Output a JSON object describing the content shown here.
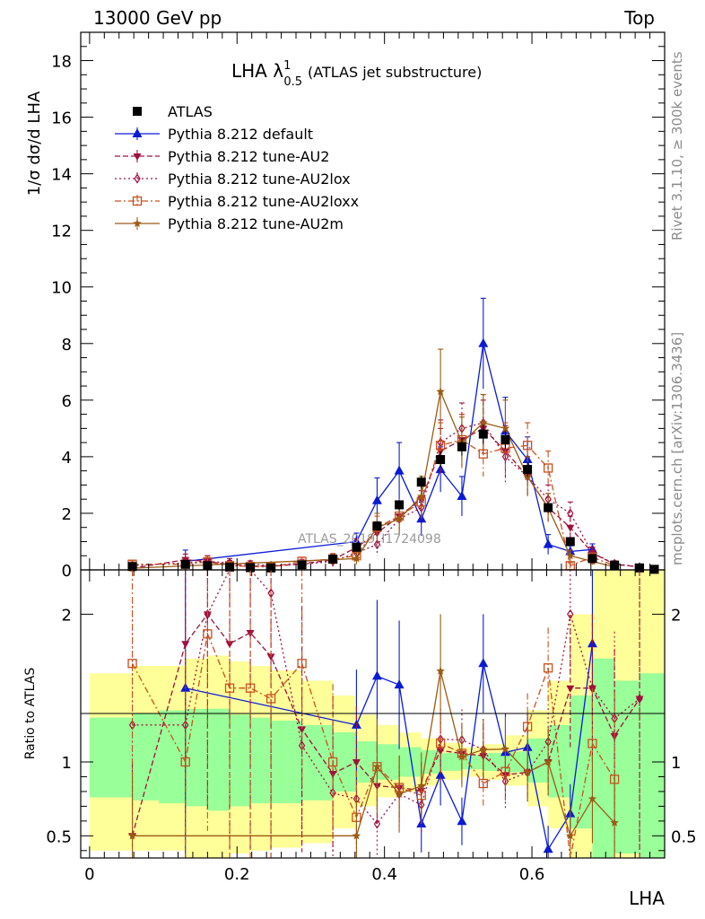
{
  "header": {
    "left": "13000 GeV pp",
    "right": "Top"
  },
  "side_labels": {
    "rivet": "Rivet 3.1.10, ≥ 300k events",
    "mcplots": "mcplots.cern.ch [arXiv:1306.3436]"
  },
  "chart_data": {
    "type": "line",
    "title": "LHA λ₀.₅¹ (ATLAS jet substructure)",
    "title_main": "LHA λ",
    "title_sup": "1",
    "title_sub": "0.5",
    "title_rest": "(ATLAS jet substructure)",
    "watermark": "ATLAS_2019_I1724098",
    "ylabel_main": "1/σ dσ/d LHA",
    "ylabel_ratio": "Ratio to ATLAS",
    "xlabel": "LHA",
    "xlim": [
      -0.012,
      0.78
    ],
    "ylim_main": [
      0,
      19
    ],
    "ylim_ratio": [
      0.35,
      2.3
    ],
    "x_ticks": [
      0,
      0.2,
      0.4,
      0.6
    ],
    "x_tick_labels": [
      "0",
      "0.2",
      "0.4",
      "0.6"
    ],
    "y_ticks_main": [
      0,
      2,
      4,
      6,
      8,
      10,
      12,
      14,
      16,
      18
    ],
    "y_tick_labels_main": [
      "0",
      "2",
      "4",
      "6",
      "8",
      "10",
      "12",
      "14",
      "16",
      "18"
    ],
    "y_ticks_ratio": [
      0.5,
      1,
      2
    ],
    "y_tick_labels_ratio": [
      "0.5",
      "1",
      "2"
    ],
    "legend_position": "top-left",
    "data": {
      "name": "ATLAS",
      "color": "#000000",
      "x": [
        0.058,
        0.13,
        0.16,
        0.19,
        0.218,
        0.246,
        0.288,
        0.33,
        0.362,
        0.39,
        0.42,
        0.45,
        0.476,
        0.505,
        0.534,
        0.564,
        0.594,
        0.622,
        0.652,
        0.682,
        0.712,
        0.746,
        0.766
      ],
      "y": [
        0.12,
        0.2,
        0.15,
        0.1,
        0.08,
        0.07,
        0.18,
        0.38,
        0.8,
        1.55,
        2.3,
        3.1,
        3.9,
        4.35,
        4.8,
        4.6,
        3.55,
        2.2,
        1.0,
        0.4,
        0.17,
        0.07,
        0.02
      ]
    },
    "series": [
      {
        "name": "Pythia 8.212 default",
        "color": "#0a1bd6",
        "style": "solid",
        "marker": "triangle-up",
        "x": [
          0.13,
          0.362,
          0.39,
          0.42,
          0.45,
          0.476,
          0.505,
          0.534,
          0.564,
          0.594,
          0.622,
          0.652,
          0.682
        ],
        "y": [
          0.3,
          1.0,
          2.45,
          3.5,
          1.8,
          3.55,
          2.6,
          8.0,
          4.9,
          3.9,
          0.9,
          0.65,
          0.72
        ],
        "err": [
          0.4,
          0.3,
          0.8,
          1.0,
          0.6,
          0.8,
          0.7,
          1.6,
          1.2,
          0.8,
          0.35,
          0.2,
          0.2
        ]
      },
      {
        "name": "Pythia 8.212 tune-AU2",
        "color": "#a0103c",
        "style": "dashed",
        "marker": "triangle-down",
        "x": [
          0.058,
          0.13,
          0.16,
          0.19,
          0.218,
          0.246,
          0.288,
          0.33,
          0.362,
          0.39,
          0.42,
          0.45,
          0.476,
          0.505,
          0.534,
          0.564,
          0.594,
          0.622,
          0.652,
          0.682,
          0.712,
          0.746
        ],
        "y": [
          0.06,
          0.36,
          0.3,
          0.18,
          0.15,
          0.12,
          0.22,
          0.35,
          0.8,
          1.3,
          1.9,
          2.5,
          4.2,
          4.6,
          5.0,
          4.2,
          3.3,
          2.2,
          1.5,
          0.6,
          0.2,
          0.1
        ],
        "err": [
          0.06,
          0.2,
          0.2,
          0.15,
          0.12,
          0.1,
          0.15,
          0.2,
          0.3,
          0.4,
          0.5,
          0.6,
          0.8,
          0.9,
          1.0,
          0.9,
          0.7,
          0.5,
          0.4,
          0.2,
          0.1,
          0.08
        ]
      },
      {
        "name": "Pythia 8.212 tune-AU2lox",
        "color": "#a0103c",
        "style": "dotted",
        "marker": "diamond-open",
        "x": [
          0.058,
          0.13,
          0.16,
          0.19,
          0.218,
          0.246,
          0.288,
          0.33,
          0.362,
          0.39,
          0.42,
          0.45,
          0.476,
          0.505,
          0.534,
          0.564,
          0.594,
          0.622,
          0.652,
          0.682,
          0.712,
          0.746
        ],
        "y": [
          0.15,
          0.25,
          0.3,
          0.25,
          0.2,
          0.15,
          0.2,
          0.3,
          0.6,
          0.9,
          1.8,
          2.2,
          4.5,
          5.0,
          5.2,
          4.0,
          3.3,
          2.5,
          2.0,
          0.6,
          0.22,
          0.1
        ],
        "err": [
          0.1,
          0.15,
          0.2,
          0.15,
          0.12,
          0.1,
          0.12,
          0.2,
          0.3,
          0.4,
          0.5,
          0.6,
          0.8,
          0.9,
          1.0,
          0.9,
          0.7,
          0.5,
          0.4,
          0.2,
          0.1,
          0.08
        ]
      },
      {
        "name": "Pythia 8.212 tune-AU2loxx",
        "color": "#c9501e",
        "style": "dashdot",
        "marker": "square-open",
        "x": [
          0.058,
          0.13,
          0.16,
          0.19,
          0.218,
          0.246,
          0.288,
          0.33,
          0.362,
          0.39,
          0.42,
          0.45,
          0.476,
          0.505,
          0.534,
          0.564,
          0.594,
          0.622,
          0.652,
          0.682,
          0.712
        ],
        "y": [
          0.2,
          0.2,
          0.28,
          0.15,
          0.12,
          0.1,
          0.3,
          0.38,
          0.5,
          1.5,
          1.9,
          2.4,
          4.4,
          4.6,
          4.1,
          4.3,
          4.4,
          3.6,
          0.15,
          0.45,
          0.15
        ],
        "err": [
          0.12,
          0.15,
          0.2,
          0.12,
          0.1,
          0.08,
          0.15,
          0.2,
          0.25,
          0.4,
          0.5,
          0.6,
          0.8,
          0.9,
          0.8,
          0.9,
          0.8,
          0.6,
          0.1,
          0.15,
          0.1
        ]
      },
      {
        "name": "Pythia 8.212 tune-AU2m",
        "color": "#9c5b14",
        "style": "solid",
        "marker": "star",
        "x": [
          0.058,
          0.362,
          0.39,
          0.42,
          0.45,
          0.476,
          0.505,
          0.534,
          0.564,
          0.594,
          0.622,
          0.652,
          0.682,
          0.712
        ],
        "y": [
          0.06,
          0.4,
          1.5,
          1.8,
          2.6,
          6.3,
          4.5,
          5.2,
          5.0,
          3.3,
          2.2,
          0.5,
          0.3,
          0.1
        ],
        "err": [
          0.05,
          0.2,
          0.5,
          0.6,
          0.7,
          1.5,
          0.9,
          1.0,
          1.0,
          0.7,
          0.5,
          0.2,
          0.12,
          0.06
        ]
      }
    ],
    "band_edges": [
      0.0,
      0.058,
      0.094,
      0.13,
      0.16,
      0.19,
      0.218,
      0.246,
      0.288,
      0.33,
      0.362,
      0.39,
      0.42,
      0.45,
      0.476,
      0.505,
      0.534,
      0.564,
      0.594,
      0.622,
      0.652,
      0.682,
      0.712,
      0.746,
      0.78
    ],
    "band_green": [
      [
        0.76,
        1.3
      ],
      [
        0.74,
        1.33
      ],
      [
        0.72,
        1.35
      ],
      [
        0.7,
        1.36
      ],
      [
        0.67,
        1.36
      ],
      [
        0.7,
        1.32
      ],
      [
        0.72,
        1.3
      ],
      [
        0.72,
        1.28
      ],
      [
        0.74,
        1.25
      ],
      [
        0.8,
        1.2
      ],
      [
        0.86,
        1.14
      ],
      [
        0.88,
        1.12
      ],
      [
        0.9,
        1.1
      ],
      [
        0.92,
        1.08
      ],
      [
        0.94,
        1.06
      ],
      [
        0.95,
        1.05
      ],
      [
        0.94,
        1.06
      ],
      [
        0.93,
        1.07
      ],
      [
        0.86,
        1.16
      ],
      [
        0.76,
        1.25
      ],
      [
        0.55,
        1.45
      ],
      [
        0.35,
        1.7
      ],
      [
        0.38,
        1.55
      ],
      [
        0.35,
        1.6
      ]
    ],
    "band_yellow": [
      [
        0.4,
        1.6
      ],
      [
        0.4,
        1.65
      ],
      [
        0.4,
        1.65
      ],
      [
        0.35,
        1.7
      ],
      [
        0.35,
        1.72
      ],
      [
        0.38,
        1.68
      ],
      [
        0.4,
        1.65
      ],
      [
        0.42,
        1.62
      ],
      [
        0.45,
        1.55
      ],
      [
        0.55,
        1.45
      ],
      [
        0.7,
        1.32
      ],
      [
        0.76,
        1.25
      ],
      [
        0.8,
        1.2
      ],
      [
        0.84,
        1.16
      ],
      [
        0.88,
        1.13
      ],
      [
        0.9,
        1.1
      ],
      [
        0.88,
        1.12
      ],
      [
        0.84,
        1.18
      ],
      [
        0.7,
        1.35
      ],
      [
        0.55,
        1.55
      ],
      [
        0.35,
        2.0
      ],
      [
        0.35,
        2.3
      ],
      [
        0.35,
        2.3
      ],
      [
        0.35,
        2.3
      ]
    ]
  }
}
